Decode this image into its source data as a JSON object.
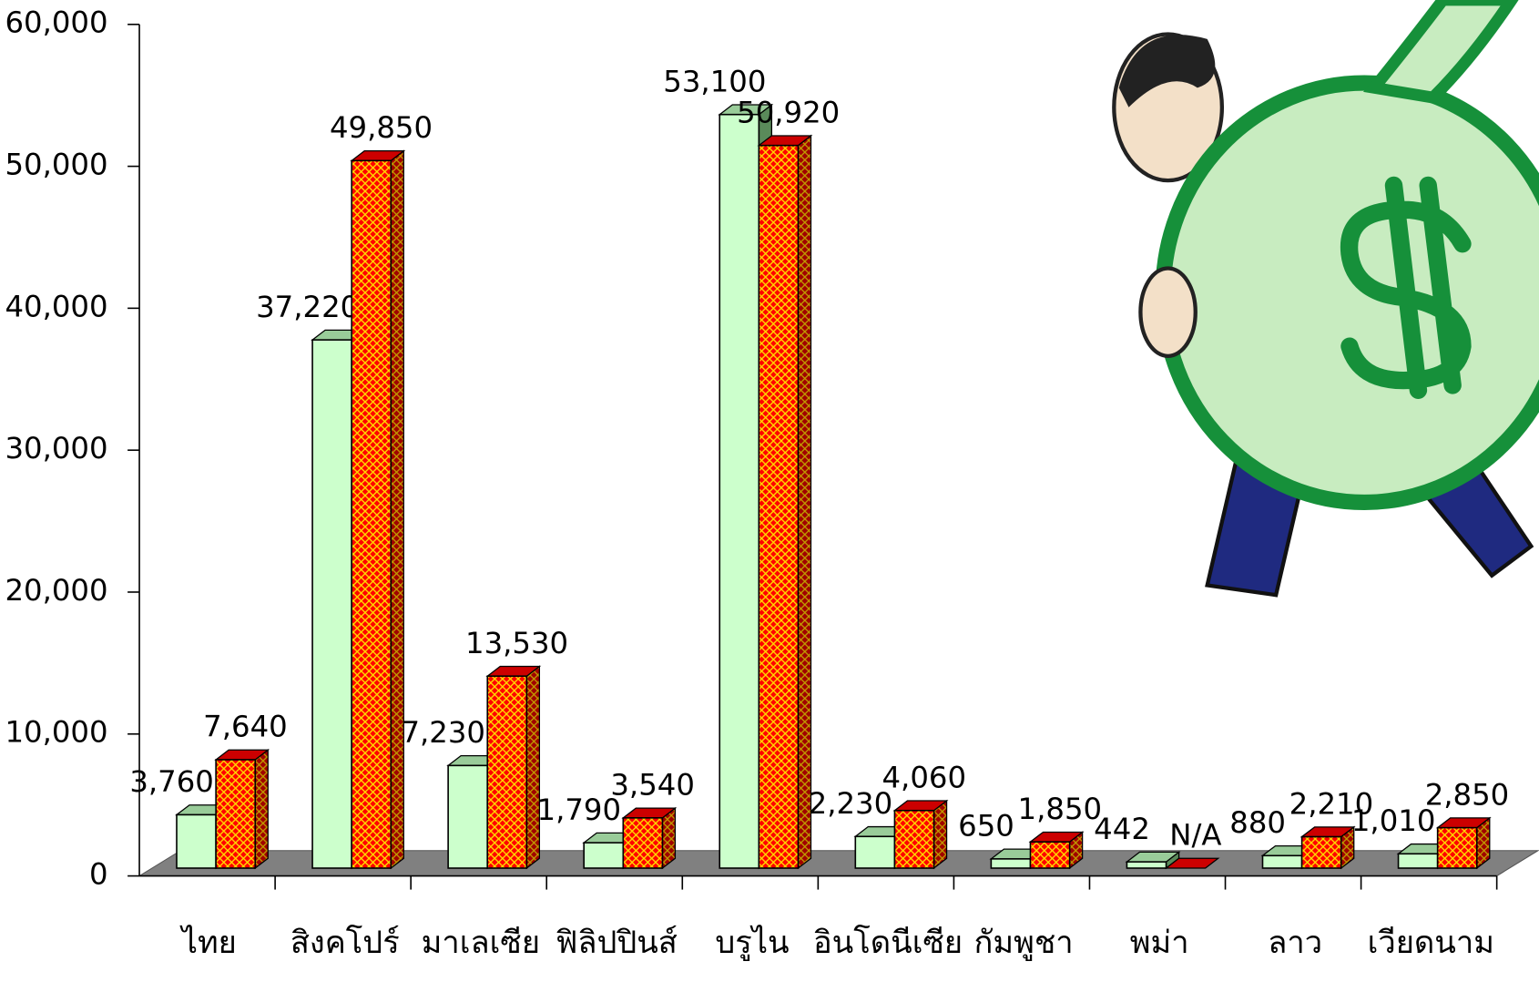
{
  "chart_data": {
    "type": "bar3d",
    "categories": [
      "ไทย",
      "สิงคโปร์",
      "มาเลเซีย",
      "ฟิลิปปินส์",
      "บรูไน",
      "อินโดนีเซีย",
      "กัมพูชา",
      "พม่า",
      "ลาว",
      "เวียดนาม"
    ],
    "series": [
      {
        "color": "#ccffcc",
        "values": [
          3760,
          37220,
          7230,
          1790,
          53100,
          2230,
          650,
          442,
          880,
          1010
        ],
        "value_labels": [
          "3,760",
          "37,220",
          "7,230",
          "1,790",
          "53,100",
          "2,230",
          "650",
          "442",
          "880",
          "1,010"
        ]
      },
      {
        "color": "#ff0000",
        "values": [
          7640,
          49850,
          13530,
          3540,
          50920,
          4060,
          1850,
          null,
          2210,
          2850
        ],
        "value_labels": [
          "7,640",
          "49,850",
          "13,530",
          "3,540",
          "50,920",
          "4,060",
          "1,850",
          "N/A",
          "2,210",
          "2,850"
        ]
      }
    ],
    "ylim": [
      0,
      60000
    ],
    "yticks": [
      0,
      {
        "value": 10000,
        "label": "10,000"
      },
      {
        "value": 20000,
        "label": "20,000"
      },
      {
        "value": 30000,
        "label": "30,000"
      },
      {
        "value": 40000,
        "label": "40,000"
      },
      {
        "value": 50000,
        "label": "50,000"
      },
      {
        "value": 60000,
        "label": "60,000"
      }
    ]
  }
}
